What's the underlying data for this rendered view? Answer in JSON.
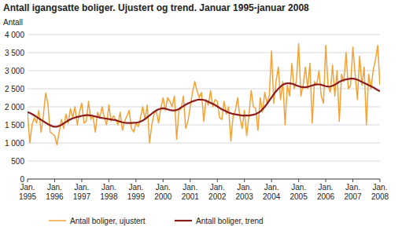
{
  "chart_data": {
    "type": "line",
    "title": "Antall igangsatte boliger. Ujustert og trend. Januar 1995-januar 2008",
    "y_label": "Antall",
    "categories": [
      "Jan. 1995",
      null,
      null,
      null,
      null,
      null,
      null,
      null,
      null,
      null,
      null,
      null,
      "Jan. 1996",
      null,
      null,
      null,
      null,
      null,
      null,
      null,
      null,
      null,
      null,
      null,
      "Jan. 1997",
      null,
      null,
      null,
      null,
      null,
      null,
      null,
      null,
      null,
      null,
      null,
      "Jan. 1998",
      null,
      null,
      null,
      null,
      null,
      null,
      null,
      null,
      null,
      null,
      null,
      "Jan. 1999",
      null,
      null,
      null,
      null,
      null,
      null,
      null,
      null,
      null,
      null,
      null,
      "Jan. 2000",
      null,
      null,
      null,
      null,
      null,
      null,
      null,
      null,
      null,
      null,
      null,
      "Jan. 2001",
      null,
      null,
      null,
      null,
      null,
      null,
      null,
      null,
      null,
      null,
      null,
      "Jan. 2002",
      null,
      null,
      null,
      null,
      null,
      null,
      null,
      null,
      null,
      null,
      null,
      "Jan. 2003",
      null,
      null,
      null,
      null,
      null,
      null,
      null,
      null,
      null,
      null,
      null,
      "Jan. 2004",
      null,
      null,
      null,
      null,
      null,
      null,
      null,
      null,
      null,
      null,
      null,
      "Jan. 2005",
      null,
      null,
      null,
      null,
      null,
      null,
      null,
      null,
      null,
      null,
      null,
      "Jan. 2006",
      null,
      null,
      null,
      null,
      null,
      null,
      null,
      null,
      null,
      null,
      null,
      "Jan. 2007",
      null,
      null,
      null,
      null,
      null,
      null,
      null,
      null,
      null,
      null,
      null,
      "Jan. 2008"
    ],
    "series": [
      {
        "name": "Antall boliger, ujustert",
        "color": "#f4a236",
        "values": [
          1850,
          1000,
          1500,
          1700,
          1550,
          1900,
          1300,
          1750,
          2380,
          2100,
          1300,
          1250,
          1200,
          950,
          1300,
          1650,
          1400,
          1800,
          1550,
          1950,
          1700,
          2000,
          1500,
          1850,
          2100,
          1550,
          1600,
          2150,
          1650,
          1750,
          1300,
          1850,
          1700,
          2000,
          1700,
          1500,
          2050,
          1600,
          1750,
          1650,
          1500,
          1850,
          1350,
          1600,
          1750,
          1900,
          1400,
          1300,
          1550,
          1450,
          1700,
          2000,
          1650,
          2050,
          1000,
          1500,
          1800,
          1900,
          1550,
          1950,
          2250,
          1900,
          2250,
          2150,
          2000,
          2300,
          1100,
          1900,
          1950,
          2300,
          1400,
          1600,
          2000,
          2400,
          2700,
          2450,
          2250,
          2400,
          1600,
          2200,
          2050,
          2450,
          2000,
          2200,
          2150,
          1700,
          1650,
          2150,
          1800,
          2000,
          1050,
          1750,
          1900,
          2250,
          1700,
          1400,
          1900,
          1200,
          1750,
          2450,
          2000,
          1950,
          1350,
          2250,
          1850,
          2400,
          2100,
          2300,
          3550,
          2100,
          2700,
          3100,
          2200,
          2700,
          1500,
          2600,
          2300,
          3200,
          2500,
          2700,
          3750,
          2300,
          2600,
          3100,
          2500,
          3200,
          1550,
          2700,
          2600,
          3000,
          2300,
          2100,
          3700,
          2600,
          2400,
          3150,
          2300,
          3000,
          1600,
          2900,
          2700,
          3500,
          2500,
          2600,
          3650,
          2900,
          2200,
          3400,
          2600,
          3100,
          1500,
          2900,
          2500,
          3000,
          3300,
          3700,
          2600
        ]
      },
      {
        "name": "Antall boliger, trend",
        "color": "#8c1c1c",
        "values": [
          1850,
          1830,
          1800,
          1760,
          1720,
          1680,
          1640,
          1600,
          1560,
          1520,
          1490,
          1460,
          1450,
          1450,
          1470,
          1500,
          1540,
          1580,
          1620,
          1650,
          1680,
          1700,
          1720,
          1730,
          1750,
          1760,
          1770,
          1770,
          1760,
          1750,
          1730,
          1720,
          1700,
          1690,
          1680,
          1670,
          1660,
          1650,
          1640,
          1630,
          1610,
          1590,
          1570,
          1560,
          1550,
          1550,
          1550,
          1555,
          1560,
          1570,
          1590,
          1620,
          1660,
          1710,
          1760,
          1810,
          1860,
          1900,
          1930,
          1950,
          1960,
          1950,
          1930,
          1910,
          1900,
          1900,
          1910,
          1940,
          1980,
          2020,
          2060,
          2090,
          2120,
          2150,
          2170,
          2190,
          2200,
          2200,
          2190,
          2170,
          2140,
          2110,
          2080,
          2050,
          2010,
          1970,
          1930,
          1900,
          1870,
          1840,
          1820,
          1800,
          1790,
          1780,
          1770,
          1760,
          1760,
          1760,
          1760,
          1770,
          1780,
          1800,
          1830,
          1870,
          1930,
          2000,
          2080,
          2170,
          2260,
          2350,
          2430,
          2500,
          2560,
          2610,
          2640,
          2650,
          2650,
          2640,
          2620,
          2590,
          2570,
          2550,
          2540,
          2540,
          2550,
          2570,
          2590,
          2610,
          2620,
          2620,
          2610,
          2590,
          2570,
          2560,
          2560,
          2580,
          2610,
          2650,
          2690,
          2720,
          2740,
          2760,
          2770,
          2780,
          2780,
          2770,
          2750,
          2720,
          2690,
          2660,
          2630,
          2600,
          2570,
          2540,
          2500,
          2460,
          2430
        ]
      }
    ],
    "ylim": [
      0,
      4000
    ],
    "yticks": [
      0,
      500,
      {
        "value": 1000,
        "label": "1 000"
      },
      {
        "value": 1500,
        "label": "1 500"
      },
      {
        "value": 2000,
        "label": "2 000"
      },
      {
        "value": 2500,
        "label": "2 500"
      },
      {
        "value": 3000,
        "label": "3 000"
      },
      {
        "value": 3500,
        "label": "3 500"
      },
      {
        "value": 4000,
        "label": "4 000"
      }
    ],
    "grid": true,
    "legend": "bottom"
  }
}
